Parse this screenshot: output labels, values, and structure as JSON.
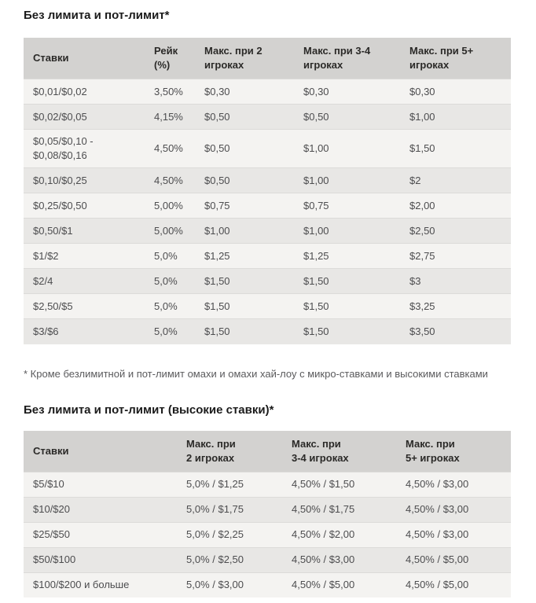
{
  "colors": {
    "page_background": "#ffffff",
    "table_header_bg": "#d3d2d0",
    "row_light_bg": "#f4f3f1",
    "row_dark_bg": "#e8e7e5",
    "row_divider": "#dcdbd9",
    "title_text": "#1b1b1b",
    "header_text": "#2b2a28",
    "cell_text": "#4d4d4f",
    "footnote_text": "#5a5a5c"
  },
  "sections": [
    {
      "title": "Без лимита и пот-лимит*",
      "table": {
        "headers": [
          "Ставки",
          "Рейк\n(%)",
          "Макс. при 2\nигроках",
          "Макс. при 3-4\nигроках",
          "Макс. при 5+\nигроках"
        ],
        "rows": [
          [
            "$0,01/$0,02",
            "3,50%",
            "$0,30",
            "$0,30",
            "$0,30"
          ],
          [
            "$0,02/$0,05",
            "4,15%",
            "$0,50",
            "$0,50",
            "$1,00"
          ],
          [
            "$0,05/$0,10 -\n$0,08/$0,16",
            "4,50%",
            "$0,50",
            "$1,00",
            "$1,50"
          ],
          [
            "$0,10/$0,25",
            "4,50%",
            "$0,50",
            "$1,00",
            "$2"
          ],
          [
            "$0,25/$0,50",
            "5,00%",
            "$0,75",
            "$0,75",
            "$2,00"
          ],
          [
            "$0,50/$1",
            "5,00%",
            "$1,00",
            "$1,00",
            "$2,50"
          ],
          [
            "$1/$2",
            "5,0%",
            "$1,25",
            "$1,25",
            "$2,75"
          ],
          [
            "$2/4",
            "5,0%",
            "$1,50",
            "$1,50",
            "$3"
          ],
          [
            "$2,50/$5",
            "5,0%",
            "$1,50",
            "$1,50",
            "$3,25"
          ],
          [
            "$3/$6",
            "5,0%",
            "$1,50",
            "$1,50",
            "$3,50"
          ]
        ]
      }
    },
    {
      "title": "Без лимита и пот-лимит (высокие ставки)*",
      "table": {
        "headers": [
          "Ставки",
          "Макс. при\n2 игроках",
          "Макс. при\n3-4 игроках",
          "Макс. при\n5+ игроках"
        ],
        "rows": [
          [
            "$5/$10",
            "5,0% / $1,25",
            "4,50% / $1,50",
            "4,50% / $3,00"
          ],
          [
            "$10/$20",
            "5,0% / $1,75",
            "4,50% / $1,75",
            "4,50% / $3,00"
          ],
          [
            "$25/$50",
            "5,0% / $2,25",
            "4,50% / $2,00",
            "4,50% / $3,00"
          ],
          [
            "$50/$100",
            "5,0% / $2,50",
            "4,50% / $3,00",
            "4,50% / $5,00"
          ],
          [
            "$100/$200 и больше",
            "5,0% / $3,00",
            "4,50% / $5,00",
            "4,50% / $5,00"
          ]
        ]
      }
    }
  ],
  "footnote": "* Кроме безлимитной и пот-лимит омахи и омахи хай-лоу с микро-ставками и высокими ставками"
}
